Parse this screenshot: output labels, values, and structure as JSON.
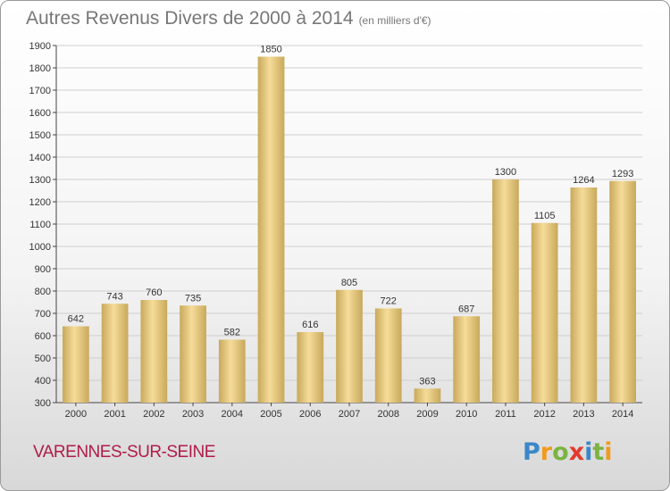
{
  "title": "Autres Revenus Divers de 2000 à 2014",
  "subtitle": "(en milliers d'€)",
  "commune": "VARENNES-SUR-SEINE",
  "logo": {
    "letters": [
      "P",
      "r",
      "o",
      "x",
      "i",
      "t",
      "i"
    ],
    "colors": [
      "#3a88c8",
      "#f29a1d",
      "#7cb342",
      "#e23a2e",
      "#3a88c8",
      "#7cb342",
      "#f29a1d"
    ]
  },
  "colors": {
    "bar_light": "#f6dc99",
    "bar_dark": "#c8a95b",
    "grid": "#cfcfcf",
    "axis": "#444444",
    "title": "#777777",
    "commune": "#b01c4a"
  },
  "chart_data": {
    "type": "bar",
    "categories": [
      "2000",
      "2001",
      "2002",
      "2003",
      "2004",
      "2005",
      "2006",
      "2007",
      "2008",
      "2009",
      "2010",
      "2011",
      "2012",
      "2013",
      "2014"
    ],
    "values": [
      642,
      743,
      760,
      735,
      582,
      1850,
      616,
      805,
      722,
      363,
      687,
      1300,
      1105,
      1264,
      1293
    ],
    "ylim": [
      300,
      1900
    ],
    "yticks": [
      300,
      400,
      500,
      600,
      700,
      800,
      900,
      1000,
      1100,
      1200,
      1300,
      1400,
      1500,
      1600,
      1700,
      1800,
      1900
    ],
    "grid": true,
    "xlabel": "",
    "ylabel": ""
  }
}
